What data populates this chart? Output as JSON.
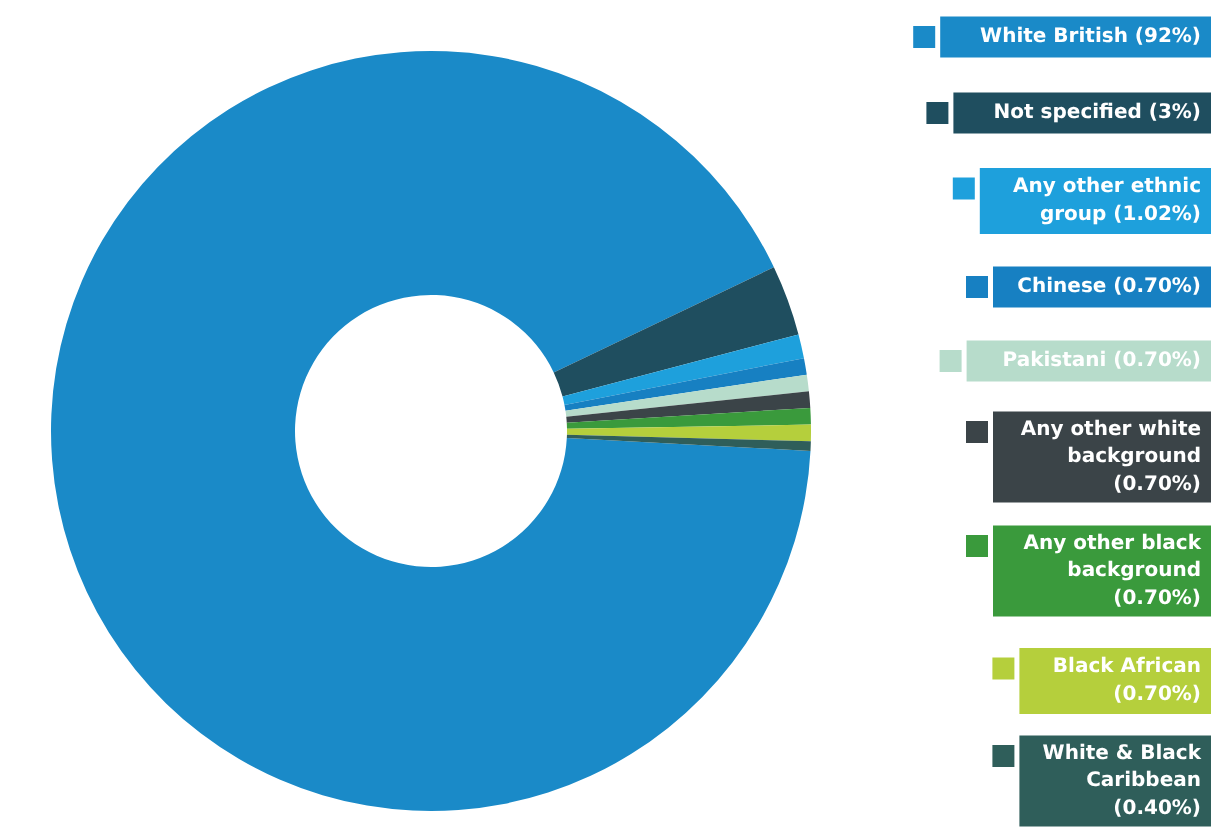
{
  "chart_data": {
    "type": "donut",
    "legend": "right",
    "categories": [
      "White British (92%)",
      "Not specified (3%)",
      "Any other ethnic group (1.02%)",
      "Chinese (0.70%)",
      "Pakistani (0.70%)",
      "Any other white background (0.70%)",
      "Any other black background (0.70%)",
      "Black African (0.70%)",
      "White & Black Caribbean (0.40%)"
    ],
    "values": [
      92,
      3,
      1.02,
      0.7,
      0.7,
      0.7,
      0.7,
      0.7,
      0.4
    ],
    "colors": [
      "#1a8ac8",
      "#1f4e5f",
      "#1ea0dc",
      "#1780c2",
      "#b7dccb",
      "#3b4448",
      "#3a9a3c",
      "#b5cf3c",
      "#2f5e5a"
    ]
  }
}
